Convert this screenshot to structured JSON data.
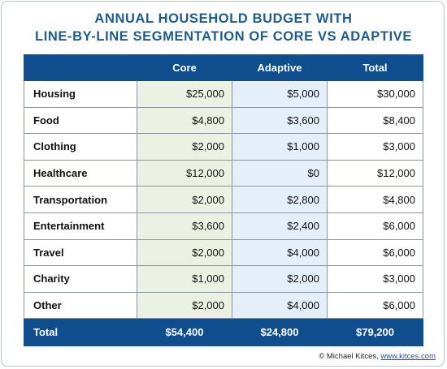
{
  "title": {
    "line1": "ANNUAL HOUSEHOLD BUDGET WITH",
    "line2": "LINE-BY-LINE SEGMENTATION OF CORE VS ADAPTIVE"
  },
  "table": {
    "headers": [
      "",
      "Core",
      "Adaptive",
      "Total"
    ],
    "rows": [
      {
        "category": "Housing",
        "core": "$25,000",
        "adaptive": "$5,000",
        "total": "$30,000"
      },
      {
        "category": "Food",
        "core": "$4,800",
        "adaptive": "$3,600",
        "total": "$8,400"
      },
      {
        "category": "Clothing",
        "core": "$2,000",
        "adaptive": "$1,000",
        "total": "$3,000"
      },
      {
        "category": "Healthcare",
        "core": "$12,000",
        "adaptive": "$0",
        "total": "$12,000"
      },
      {
        "category": "Transportation",
        "core": "$2,000",
        "adaptive": "$2,800",
        "total": "$4,800"
      },
      {
        "category": "Entertainment",
        "core": "$3,600",
        "adaptive": "$2,400",
        "total": "$6,000"
      },
      {
        "category": "Travel",
        "core": "$2,000",
        "adaptive": "$4,000",
        "total": "$6,000"
      },
      {
        "category": "Charity",
        "core": "$1,000",
        "adaptive": "$2,000",
        "total": "$3,000"
      },
      {
        "category": "Other",
        "core": "$2,000",
        "adaptive": "$4,000",
        "total": "$6,000"
      }
    ],
    "footer": {
      "category": "Total",
      "core": "$54,400",
      "adaptive": "$24,800",
      "total": "$79,200"
    }
  },
  "credit": {
    "text": "© Michael Kitces, ",
    "link": "www.kitces.com"
  },
  "colors": {
    "header_blue": "#0f4d8c",
    "title_blue": "#1f5b8f",
    "core_fill": "#ecf2e3",
    "adaptive_fill": "#e5eff9"
  }
}
